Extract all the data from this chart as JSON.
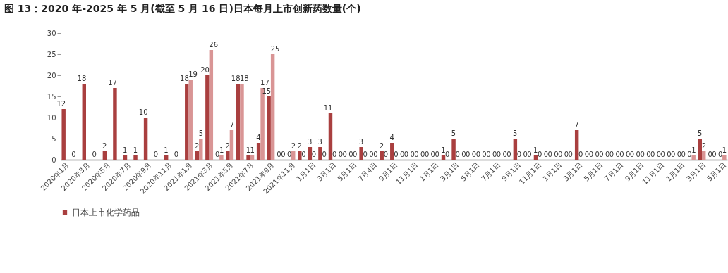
{
  "chart_data": {
    "type": "bar",
    "title": "图 13：2020 年-2025 年 5 月(截至 5 月 16 日)日本每月上市创新药数量(个)",
    "categories": [
      "2020年1月",
      null,
      "2020年3月",
      null,
      "2020年5月",
      null,
      "2020年7月",
      null,
      "2020年9月",
      null,
      "2020年11月",
      null,
      "2021年1月",
      null,
      "2021年3月",
      null,
      "2021年5月",
      null,
      "2021年7月",
      null,
      "2021年9月",
      null,
      "2021年11月",
      null,
      "1月1日",
      null,
      "3月1日",
      null,
      "5月1日",
      null,
      "7月4日",
      null,
      "9月1日",
      null,
      "11月1日",
      null,
      "1月1日",
      null,
      "3月1日",
      null,
      "5月1日",
      null,
      "7月1日",
      null,
      "9月1日",
      null,
      "11月1日",
      null,
      "1月1日",
      null,
      "3月1日",
      null,
      "5月1日",
      null,
      "7月1日",
      null,
      "9月1日",
      null,
      "11月1日",
      null,
      "1月1日",
      null,
      "3月1日",
      null,
      "5月1日"
    ],
    "series": [
      {
        "name": "日本上市化学药品",
        "color": "#a93f3f",
        "values": [
          12,
          0,
          18,
          0,
          2,
          17,
          1,
          1,
          10,
          0,
          1,
          0,
          18,
          2,
          20,
          0,
          2,
          18,
          1,
          4,
          15,
          0,
          0,
          2,
          3,
          3,
          11,
          0,
          0,
          3,
          0,
          2,
          4,
          0,
          0,
          0,
          0,
          1,
          5,
          0,
          0,
          0,
          0,
          0,
          5,
          0,
          1,
          0,
          0,
          0,
          7,
          0,
          0,
          0,
          0,
          0,
          0,
          0,
          0,
          0,
          0,
          0,
          5,
          0,
          0
        ]
      },
      {
        "color": "#d99595",
        "values": [
          null,
          null,
          null,
          null,
          null,
          null,
          null,
          null,
          null,
          null,
          null,
          null,
          19,
          5,
          26,
          1,
          7,
          18,
          1,
          17,
          25,
          0,
          2,
          0,
          0,
          0,
          0,
          0,
          0,
          0,
          0,
          0,
          0,
          0,
          0,
          0,
          0,
          0,
          0,
          0,
          0,
          0,
          0,
          0,
          0,
          0,
          0,
          0,
          0,
          0,
          0,
          0,
          0,
          0,
          0,
          0,
          0,
          0,
          0,
          0,
          0,
          1,
          2,
          0,
          1
        ]
      }
    ],
    "ylim": [
      0,
      30
    ],
    "yticks": [
      0,
      5,
      10,
      15,
      20,
      25,
      30
    ],
    "grid": false,
    "legend": "bottom",
    "data_labels": true
  }
}
